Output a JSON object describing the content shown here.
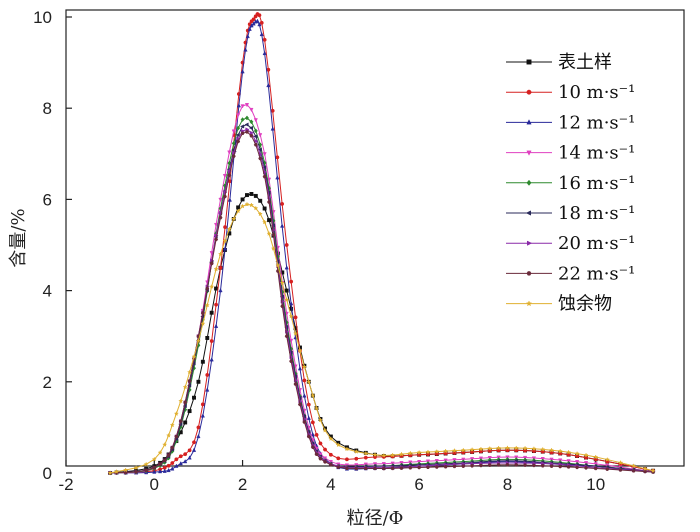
{
  "chart_data": {
    "type": "line",
    "xlabel": "粒径/Φ",
    "ylabel": "含量/%",
    "xlim": [
      -2,
      12
    ],
    "ylim": [
      0,
      10
    ],
    "xticks": [
      -2,
      0,
      2,
      4,
      6,
      8,
      10
    ],
    "yticks": [
      0,
      2,
      4,
      6,
      8,
      10
    ],
    "grid": false,
    "legend_position": "top-right",
    "series": [
      {
        "name": "表土样",
        "color": "#111111",
        "marker": "square",
        "x": [
          -1,
          0,
          0.5,
          1,
          1.5,
          2,
          2.5,
          3,
          3.5,
          4,
          5,
          6,
          7,
          8,
          9,
          10,
          11.3
        ],
        "y": [
          0,
          0.15,
          0.7,
          2.0,
          4.5,
          6.0,
          5.8,
          4.0,
          2.0,
          0.8,
          0.4,
          0.4,
          0.45,
          0.5,
          0.45,
          0.3,
          0.05
        ]
      },
      {
        "name": "10 m·s⁻¹",
        "color": "#d62020",
        "marker": "circle",
        "x": [
          -1,
          0,
          0.5,
          1,
          1.5,
          2,
          2.25,
          2.5,
          3,
          3.5,
          4,
          5,
          6,
          7,
          8,
          9,
          10,
          11.3
        ],
        "y": [
          0,
          0.05,
          0.3,
          1.0,
          4.5,
          9.0,
          9.95,
          9.5,
          5.0,
          1.5,
          0.4,
          0.35,
          0.4,
          0.45,
          0.5,
          0.45,
          0.3,
          0.05
        ]
      },
      {
        "name": "12 m·s⁻¹",
        "color": "#2a2a9a",
        "marker": "triangle",
        "x": [
          -1,
          0,
          0.5,
          1,
          1.5,
          2,
          2.25,
          2.5,
          3,
          3.5,
          4,
          5,
          6,
          7,
          8,
          9,
          10,
          11.3
        ],
        "y": [
          0,
          0.02,
          0.15,
          0.8,
          4.0,
          8.8,
          9.85,
          9.2,
          4.5,
          1.2,
          0.2,
          0.1,
          0.15,
          0.2,
          0.25,
          0.2,
          0.15,
          0.03
        ]
      },
      {
        "name": "14 m·s⁻¹",
        "color": "#e040c0",
        "marker": "triangle-down",
        "x": [
          -1,
          0,
          0.5,
          1,
          1.5,
          2,
          2.5,
          3,
          3.5,
          4,
          5,
          6,
          7,
          8,
          9,
          10,
          11.3
        ],
        "y": [
          0,
          0.1,
          0.8,
          3.0,
          6.0,
          8.05,
          7.0,
          3.5,
          1.0,
          0.25,
          0.2,
          0.25,
          0.3,
          0.35,
          0.3,
          0.2,
          0.03
        ]
      },
      {
        "name": "16 m·s⁻¹",
        "color": "#2e8a2e",
        "marker": "diamond",
        "x": [
          -1,
          0,
          0.5,
          1,
          1.5,
          2,
          2.5,
          3,
          3.5,
          4,
          5,
          6,
          7,
          8,
          9,
          10,
          11.3
        ],
        "y": [
          0,
          0.1,
          0.7,
          2.8,
          5.8,
          7.75,
          6.8,
          3.3,
          0.9,
          0.2,
          0.15,
          0.2,
          0.25,
          0.3,
          0.25,
          0.15,
          0.03
        ]
      },
      {
        "name": "18 m·s⁻¹",
        "color": "#2a2a5a",
        "marker": "triangle-left",
        "x": [
          -1,
          0,
          0.5,
          1,
          1.5,
          2,
          2.5,
          3,
          3.5,
          4,
          5,
          6,
          7,
          8,
          9,
          10,
          11.3
        ],
        "y": [
          0,
          0.12,
          0.75,
          2.9,
          5.7,
          7.6,
          6.7,
          3.2,
          0.9,
          0.2,
          0.15,
          0.18,
          0.22,
          0.27,
          0.22,
          0.15,
          0.03
        ]
      },
      {
        "name": "20 m·s⁻¹",
        "color": "#8a2aa8",
        "marker": "triangle-right",
        "x": [
          -1,
          0,
          0.5,
          1,
          1.5,
          2,
          2.5,
          3,
          3.5,
          4,
          5,
          6,
          7,
          8,
          9,
          10,
          11.3
        ],
        "y": [
          0,
          0.12,
          0.8,
          3.0,
          5.7,
          7.5,
          6.6,
          3.1,
          0.85,
          0.2,
          0.12,
          0.15,
          0.2,
          0.22,
          0.2,
          0.12,
          0.03
        ]
      },
      {
        "name": "22 m·s⁻¹",
        "color": "#6a2a3a",
        "marker": "hexagon",
        "x": [
          -1,
          0,
          0.5,
          1,
          1.5,
          2,
          2.5,
          3,
          3.5,
          4,
          5,
          6,
          7,
          8,
          9,
          10,
          11.3
        ],
        "y": [
          0,
          0.12,
          0.8,
          3.0,
          5.6,
          7.45,
          6.5,
          3.0,
          0.8,
          0.18,
          0.1,
          0.12,
          0.15,
          0.18,
          0.15,
          0.1,
          0.02
        ]
      },
      {
        "name": "蚀余物",
        "color": "#e0b030",
        "marker": "star",
        "x": [
          -1,
          0,
          0.5,
          1,
          1.5,
          2,
          2.5,
          3,
          3.5,
          4,
          5,
          6,
          7,
          8,
          9,
          10,
          11.3
        ],
        "y": [
          0,
          0.3,
          1.3,
          2.9,
          4.8,
          5.85,
          5.5,
          3.8,
          2.0,
          0.75,
          0.4,
          0.45,
          0.5,
          0.55,
          0.5,
          0.35,
          0.05
        ]
      }
    ]
  }
}
